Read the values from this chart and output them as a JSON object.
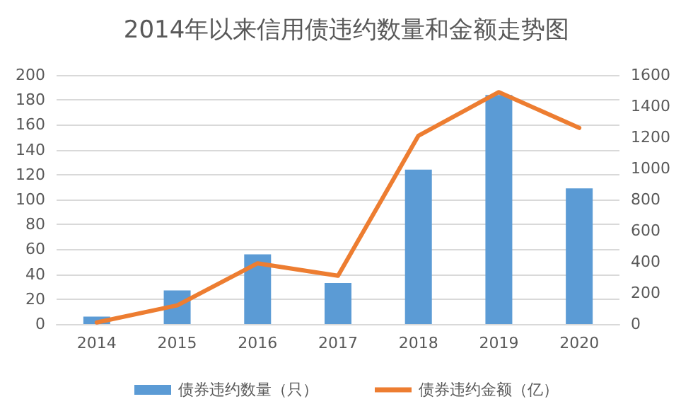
{
  "chart_data": {
    "type": "bar",
    "title": "2014年以来信用债违约数量和金额走势图",
    "categories": [
      "2014",
      "2015",
      "2016",
      "2017",
      "2018",
      "2019",
      "2020"
    ],
    "series": [
      {
        "name": "债券违约数量（只）",
        "color": "#5b9bd5",
        "values": [
          6,
          27,
          56,
          33,
          124,
          184,
          109
        ]
      },
      {
        "name": "债券违约金额（亿）",
        "type": "line",
        "axis": "y2",
        "color": "#ed7d31",
        "values": [
          10,
          120,
          390,
          310,
          1210,
          1490,
          1260
        ]
      }
    ],
    "ylim": [
      0,
      200
    ],
    "yticks": [
      0,
      20,
      40,
      60,
      80,
      100,
      120,
      140,
      160,
      180,
      200
    ],
    "y2lim": [
      0,
      1600
    ],
    "y2ticks": [
      0,
      200,
      400,
      600,
      800,
      1000,
      1200,
      1400,
      1600
    ],
    "grid": "y",
    "legend": "bottom",
    "marker": "none"
  }
}
